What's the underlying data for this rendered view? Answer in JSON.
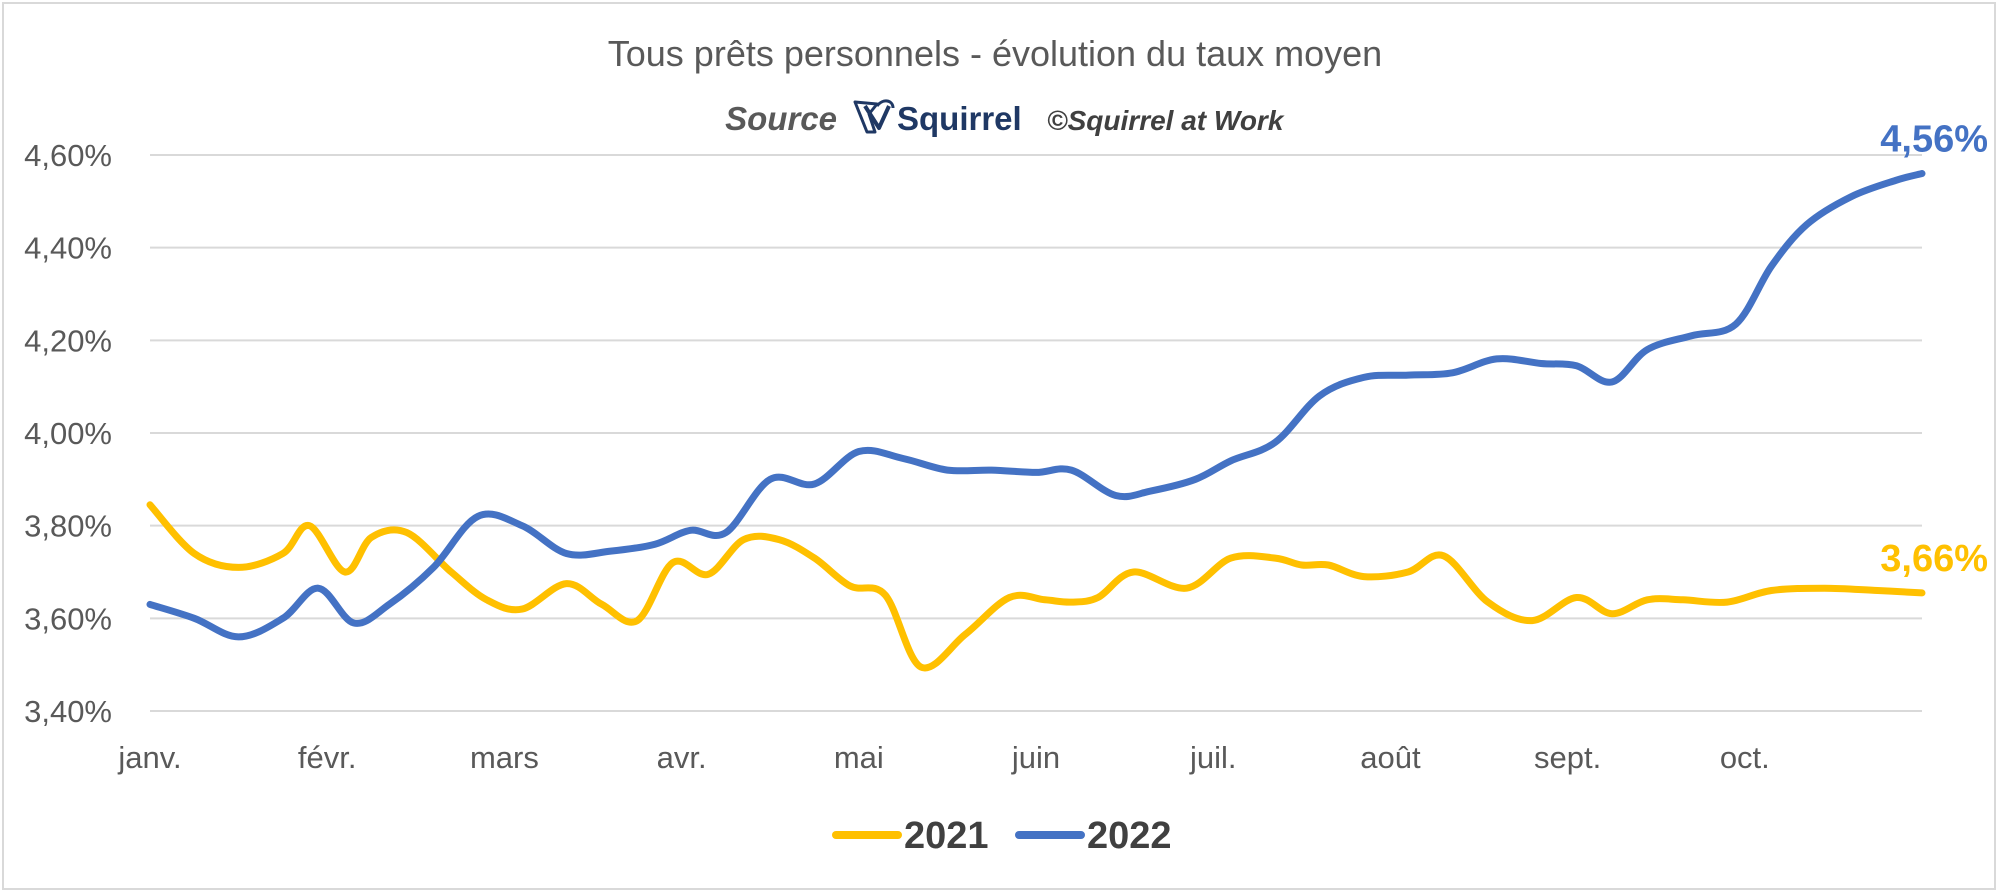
{
  "chart_data": {
    "type": "line",
    "title": "Tous prêts personnels - évolution du taux moyen",
    "source": {
      "label": "Source",
      "brand": "Squirrel",
      "brand_icon": "squirrel-logo-icon",
      "copyright": "©Squirrel at Work"
    },
    "categories": [
      "janv.",
      "févr.",
      "mars",
      "avr.",
      "mai",
      "juin",
      "juil.",
      "août",
      "sept.",
      "oct."
    ],
    "y_ticks": [
      "3,40%",
      "3,60%",
      "3,80%",
      "4,00%",
      "4,20%",
      "4,40%",
      "4,60%"
    ],
    "ylim": [
      3.4,
      4.6
    ],
    "y_unit": "%",
    "grid": true,
    "legend_position": "bottom",
    "series": [
      {
        "name": "2021",
        "color": "#FFC000",
        "end_label": "3,66%",
        "x": [
          0,
          0.25,
          0.5,
          0.75,
          0.9,
          1.1,
          1.25,
          1.45,
          1.7,
          1.9,
          2.1,
          2.35,
          2.55,
          2.75,
          2.95,
          3.15,
          3.35,
          3.55,
          3.75,
          3.95,
          4.15,
          4.35,
          4.6,
          4.85,
          5.05,
          5.2,
          5.35,
          5.55,
          5.85,
          6.1,
          6.35,
          6.5,
          6.65,
          6.85,
          7.1,
          7.3,
          7.55,
          7.8,
          8.05,
          8.25,
          8.45,
          8.65,
          8.9,
          9.15,
          9.45,
          9.75,
          10.0
        ],
        "y": [
          3.845,
          3.74,
          3.71,
          3.74,
          3.8,
          3.7,
          3.775,
          3.785,
          3.7,
          3.64,
          3.62,
          3.675,
          3.63,
          3.595,
          3.72,
          3.695,
          3.77,
          3.77,
          3.73,
          3.67,
          3.65,
          3.495,
          3.565,
          3.645,
          3.64,
          3.635,
          3.645,
          3.7,
          3.665,
          3.73,
          3.73,
          3.715,
          3.715,
          3.69,
          3.7,
          3.735,
          3.635,
          3.595,
          3.645,
          3.61,
          3.64,
          3.64,
          3.635,
          3.66,
          3.665,
          3.66,
          3.655
        ]
      },
      {
        "name": "2022",
        "color": "#4472C4",
        "end_label": "4,56%",
        "x": [
          0,
          0.25,
          0.5,
          0.75,
          0.95,
          1.15,
          1.35,
          1.6,
          1.85,
          2.1,
          2.35,
          2.6,
          2.85,
          3.05,
          3.25,
          3.5,
          3.75,
          4.0,
          4.25,
          4.5,
          4.75,
          5.0,
          5.2,
          5.45,
          5.65,
          5.9,
          6.1,
          6.35,
          6.6,
          6.85,
          7.1,
          7.35,
          7.6,
          7.85,
          8.05,
          8.25,
          8.45,
          8.7,
          8.95,
          9.15,
          9.35,
          9.6,
          9.85,
          10.0
        ],
        "y": [
          3.63,
          3.6,
          3.56,
          3.6,
          3.665,
          3.59,
          3.63,
          3.71,
          3.82,
          3.8,
          3.74,
          3.745,
          3.76,
          3.79,
          3.785,
          3.9,
          3.89,
          3.96,
          3.945,
          3.92,
          3.92,
          3.915,
          3.92,
          3.865,
          3.875,
          3.9,
          3.94,
          3.98,
          4.08,
          4.12,
          4.125,
          4.13,
          4.16,
          4.15,
          4.145,
          4.11,
          4.18,
          4.21,
          4.235,
          4.36,
          4.45,
          4.51,
          4.545,
          4.56
        ]
      }
    ]
  }
}
